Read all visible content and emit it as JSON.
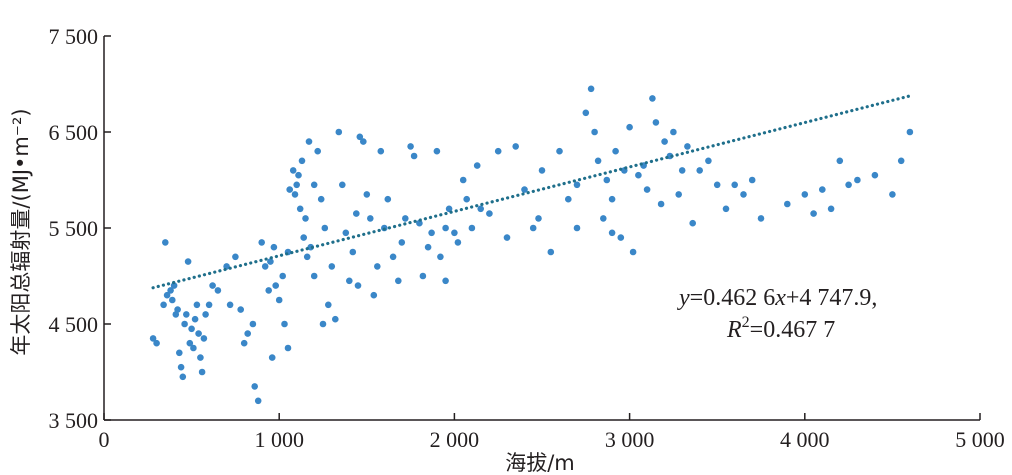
{
  "chart_data": {
    "type": "scatter",
    "xlabel": "海拔/m",
    "ylabel": "年太阳总辐射量/(MJ•m⁻²)",
    "xlim": [
      0,
      5000
    ],
    "ylim": [
      3500,
      7500
    ],
    "x_ticks": [
      0,
      1000,
      2000,
      3000,
      4000,
      5000
    ],
    "x_tick_labels": [
      "0",
      "1 000",
      "2 000",
      "3 000",
      "4 000",
      "5 000"
    ],
    "y_ticks": [
      3500,
      4500,
      5500,
      6500,
      7500
    ],
    "y_tick_labels": [
      "3 500",
      "4 500",
      "5 500",
      "6 500",
      "7 500"
    ],
    "grid": false,
    "point_color": "#3a87c8",
    "trend_color": "#1f6f8b",
    "trendline": {
      "slope": 0.4626,
      "intercept": 4747.9,
      "x_range": [
        280,
        4600
      ]
    },
    "annotation": {
      "line1_y": "y",
      "line1_rest": "=0.462 6",
      "line1_x": "x",
      "line1_tail": "+4 747.9,",
      "line2_R": "R",
      "line2_sup": "2",
      "line2_rest": "=0.467 7"
    },
    "series": [
      {
        "points": [
          [
            280,
            4350
          ],
          [
            300,
            4300
          ],
          [
            340,
            4700
          ],
          [
            350,
            5350
          ],
          [
            360,
            4800
          ],
          [
            380,
            4850
          ],
          [
            390,
            4750
          ],
          [
            400,
            4900
          ],
          [
            410,
            4600
          ],
          [
            420,
            4650
          ],
          [
            430,
            4200
          ],
          [
            440,
            4050
          ],
          [
            450,
            3950
          ],
          [
            460,
            4500
          ],
          [
            470,
            4600
          ],
          [
            480,
            5150
          ],
          [
            490,
            4300
          ],
          [
            500,
            4450
          ],
          [
            510,
            4250
          ],
          [
            520,
            4550
          ],
          [
            530,
            4700
          ],
          [
            540,
            4400
          ],
          [
            550,
            4150
          ],
          [
            560,
            4000
          ],
          [
            570,
            4350
          ],
          [
            580,
            4600
          ],
          [
            600,
            4700
          ],
          [
            620,
            4900
          ],
          [
            650,
            4850
          ],
          [
            700,
            5100
          ],
          [
            720,
            4700
          ],
          [
            750,
            5200
          ],
          [
            780,
            4650
          ],
          [
            800,
            4300
          ],
          [
            820,
            4400
          ],
          [
            850,
            4500
          ],
          [
            860,
            3850
          ],
          [
            880,
            3700
          ],
          [
            900,
            5350
          ],
          [
            920,
            5100
          ],
          [
            940,
            4850
          ],
          [
            950,
            5150
          ],
          [
            970,
            5300
          ],
          [
            980,
            4900
          ],
          [
            1000,
            4750
          ],
          [
            1020,
            5000
          ],
          [
            1030,
            4500
          ],
          [
            1050,
            5250
          ],
          [
            1060,
            5900
          ],
          [
            1080,
            6100
          ],
          [
            1090,
            5850
          ],
          [
            1100,
            5950
          ],
          [
            1110,
            6050
          ],
          [
            1120,
            5700
          ],
          [
            1130,
            6200
          ],
          [
            1140,
            5400
          ],
          [
            1150,
            5600
          ],
          [
            1160,
            5200
          ],
          [
            1170,
            6400
          ],
          [
            1180,
            5300
          ],
          [
            1200,
            5000
          ],
          [
            1220,
            6300
          ],
          [
            1240,
            5800
          ],
          [
            1260,
            5500
          ],
          [
            1280,
            4700
          ],
          [
            1300,
            5100
          ],
          [
            1320,
            4550
          ],
          [
            1340,
            6500
          ],
          [
            1360,
            5950
          ],
          [
            1380,
            5450
          ],
          [
            1400,
            4950
          ],
          [
            1420,
            5250
          ],
          [
            1440,
            5650
          ],
          [
            1460,
            6450
          ],
          [
            1480,
            6400
          ],
          [
            1500,
            5850
          ],
          [
            1520,
            5600
          ],
          [
            1540,
            4800
          ],
          [
            1560,
            5100
          ],
          [
            1580,
            6300
          ],
          [
            1600,
            5500
          ],
          [
            1620,
            5800
          ],
          [
            1650,
            5200
          ],
          [
            1680,
            4950
          ],
          [
            1700,
            5350
          ],
          [
            1720,
            5600
          ],
          [
            1750,
            6350
          ],
          [
            1770,
            6250
          ],
          [
            1800,
            5550
          ],
          [
            1820,
            5000
          ],
          [
            1850,
            5300
          ],
          [
            1870,
            5450
          ],
          [
            1900,
            6300
          ],
          [
            1920,
            5200
          ],
          [
            1950,
            5500
          ],
          [
            1970,
            5700
          ],
          [
            2000,
            5450
          ],
          [
            2020,
            5350
          ],
          [
            2050,
            6000
          ],
          [
            2070,
            5800
          ],
          [
            2100,
            5500
          ],
          [
            2130,
            6150
          ],
          [
            2150,
            5700
          ],
          [
            2200,
            5650
          ],
          [
            2250,
            6300
          ],
          [
            2300,
            5400
          ],
          [
            2350,
            6350
          ],
          [
            2400,
            5900
          ],
          [
            2450,
            5500
          ],
          [
            2480,
            5600
          ],
          [
            2500,
            6100
          ],
          [
            2550,
            5250
          ],
          [
            2600,
            6300
          ],
          [
            2650,
            5800
          ],
          [
            2700,
            5950
          ],
          [
            2750,
            6700
          ],
          [
            2780,
            6950
          ],
          [
            2800,
            6500
          ],
          [
            2820,
            6200
          ],
          [
            2850,
            5600
          ],
          [
            2870,
            6000
          ],
          [
            2900,
            5800
          ],
          [
            2920,
            6300
          ],
          [
            2950,
            5400
          ],
          [
            2970,
            6100
          ],
          [
            3000,
            6550
          ],
          [
            3020,
            5250
          ],
          [
            3050,
            6050
          ],
          [
            3080,
            6150
          ],
          [
            3100,
            5900
          ],
          [
            3130,
            6850
          ],
          [
            3150,
            6600
          ],
          [
            3180,
            5750
          ],
          [
            3200,
            6400
          ],
          [
            3230,
            6250
          ],
          [
            3250,
            6500
          ],
          [
            3280,
            5850
          ],
          [
            3300,
            6100
          ],
          [
            3330,
            6350
          ],
          [
            3360,
            5550
          ],
          [
            3400,
            6100
          ],
          [
            3450,
            6200
          ],
          [
            3500,
            5950
          ],
          [
            3550,
            5700
          ],
          [
            3600,
            5950
          ],
          [
            3650,
            5850
          ],
          [
            3700,
            6000
          ],
          [
            3900,
            5750
          ],
          [
            4000,
            5850
          ],
          [
            4050,
            5650
          ],
          [
            4100,
            5900
          ],
          [
            4200,
            6200
          ],
          [
            4250,
            5950
          ],
          [
            4300,
            6000
          ],
          [
            4400,
            6050
          ],
          [
            4500,
            5850
          ],
          [
            4550,
            6200
          ],
          [
            4600,
            6500
          ],
          [
            4150,
            5700
          ],
          [
            3750,
            5600
          ],
          [
            2900,
            5450
          ],
          [
            2700,
            5500
          ],
          [
            1950,
            4950
          ],
          [
            1450,
            4900
          ],
          [
            1250,
            4500
          ],
          [
            1050,
            4250
          ],
          [
            960,
            4150
          ],
          [
            1200,
            5950
          ]
        ]
      }
    ]
  }
}
